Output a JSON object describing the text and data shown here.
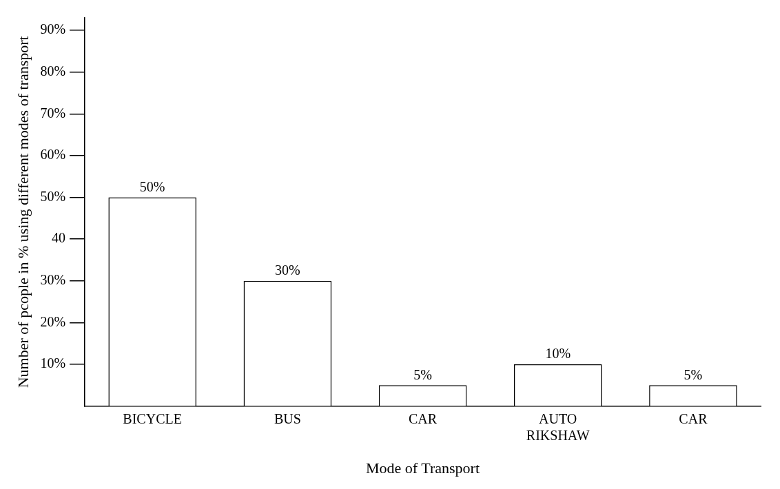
{
  "chart_data": {
    "type": "bar",
    "xlabel": "Mode of Transport",
    "ylabel": "Number of pcople in % using different modes of transport",
    "categories": [
      "BICYCLE",
      "BUS",
      "CAR",
      "AUTO RIKSHAW",
      "CAR"
    ],
    "values": [
      50,
      30,
      5,
      10,
      5
    ],
    "value_labels": [
      "50%",
      "30%",
      "5%",
      "10%",
      "5%"
    ],
    "color": "#ffffff",
    "ylim": [
      0,
      93
    ],
    "yticks": [
      {
        "value": 10,
        "label": "10%"
      },
      {
        "value": 20,
        "label": "20%"
      },
      {
        "value": 30,
        "label": "30%"
      },
      40,
      {
        "value": 50,
        "label": "50%"
      },
      {
        "value": 60,
        "label": "60%"
      },
      {
        "value": 70,
        "label": "70%"
      },
      {
        "value": 80,
        "label": "80%"
      },
      {
        "value": 90,
        "label": "90%"
      }
    ],
    "grid": false,
    "legend": false
  }
}
